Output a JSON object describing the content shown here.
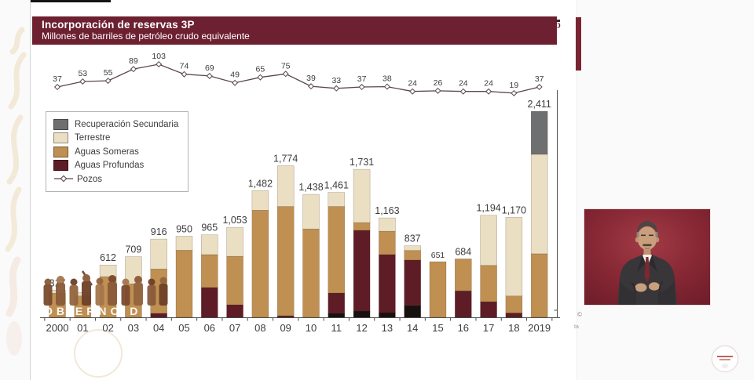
{
  "title": {
    "line1": "Incorporación de reservas 3P",
    "line2": "Millones de barriles de petróleo crudo equivalente"
  },
  "legend": {
    "items": [
      {
        "key": "secundaria",
        "label": "Recuperación Secundaria",
        "type": "swatch"
      },
      {
        "key": "terrestre",
        "label": "Terrestre",
        "type": "swatch"
      },
      {
        "key": "someras",
        "label": "Aguas Someras",
        "type": "swatch"
      },
      {
        "key": "profundas",
        "label": "Aguas Profundas",
        "type": "swatch"
      },
      {
        "key": "line",
        "label": "Pozos",
        "type": "line-marker"
      }
    ]
  },
  "colors": {
    "title_bg": "#6c2030",
    "accent_bar": "#7a2433",
    "secundaria": "#6e6f71",
    "terrestre": "#ebdfc3",
    "someras": "#bf9052",
    "profundas": "#5e1c27",
    "negro": "#171110",
    "line": "#5a4747",
    "text": "#3c3c3c",
    "interpreter_bg": "#7c2230"
  },
  "watermark": {
    "overlay_text_fragment": "OBIERNO D"
  },
  "fragments": {
    "title_edge": "O",
    "copyright": "©",
    "small_text": "ta"
  },
  "chart_data": {
    "type": "bar",
    "subtype": "stacked-bar-with-line-overlay",
    "title": "Incorporación de reservas 3P",
    "unit": "Millones de barriles de petróleo crudo equivalente",
    "grid": false,
    "legend_position": "upper-left",
    "categories": [
      "2000",
      "01",
      "02",
      "03",
      "04",
      "05",
      "06",
      "07",
      "08",
      "09",
      "10",
      "11",
      "12",
      "13",
      "14",
      "15",
      "16",
      "17",
      "18",
      "2019"
    ],
    "series_labels": {
      "secundaria": "Recuperación Secundaria",
      "terrestre": "Terrestre",
      "someras": "Aguas Someras",
      "profundas": "Aguas Profundas",
      "negro": "(segmento oscuro sin etiqueta)"
    },
    "bars": [
      {
        "category": "2000",
        "total": 317,
        "label": "317",
        "segments": [
          [
            "someras",
            280
          ],
          [
            "terrestre",
            37
          ]
        ]
      },
      {
        "category": "01",
        "total": null,
        "label": "",
        "segments": [
          [
            "someras",
            250
          ],
          [
            "terrestre",
            40
          ]
        ]
      },
      {
        "category": "02",
        "total": 612,
        "label": "612",
        "segments": [
          [
            "someras",
            475
          ],
          [
            "terrestre",
            137
          ]
        ]
      },
      {
        "category": "03",
        "total": 709,
        "label": "709",
        "segments": [
          [
            "someras",
            390
          ],
          [
            "terrestre",
            319
          ]
        ]
      },
      {
        "category": "04",
        "total": 916,
        "label": "916",
        "segments": [
          [
            "profundas",
            46
          ],
          [
            "someras",
            520
          ],
          [
            "terrestre",
            350
          ]
        ]
      },
      {
        "category": "05",
        "total": 950,
        "label": "950",
        "segments": [
          [
            "someras",
            785
          ],
          [
            "terrestre",
            165
          ]
        ]
      },
      {
        "category": "06",
        "total": 965,
        "label": "965",
        "segments": [
          [
            "profundas",
            348
          ],
          [
            "someras",
            385
          ],
          [
            "terrestre",
            232
          ]
        ]
      },
      {
        "category": "07",
        "total": 1053,
        "label": "1,053",
        "segments": [
          [
            "profundas",
            147
          ],
          [
            "someras",
            567
          ],
          [
            "terrestre",
            339
          ]
        ]
      },
      {
        "category": "08",
        "total": 1482,
        "label": "1,482",
        "segments": [
          [
            "someras",
            1253
          ],
          [
            "terrestre",
            229
          ]
        ]
      },
      {
        "category": "09",
        "total": 1774,
        "label": "1,774",
        "segments": [
          [
            "profundas",
            18
          ],
          [
            "someras",
            1278
          ],
          [
            "terrestre",
            478
          ]
        ]
      },
      {
        "category": "10",
        "total": 1438,
        "label": "1,438",
        "segments": [
          [
            "someras",
            1034
          ],
          [
            "terrestre",
            404
          ]
        ]
      },
      {
        "category": "11",
        "total": 1461,
        "label": "1,461",
        "segments": [
          [
            "negro",
            46
          ],
          [
            "profundas",
            238
          ],
          [
            "someras",
            1012
          ],
          [
            "terrestre",
            165
          ]
        ]
      },
      {
        "category": "12",
        "total": 1731,
        "label": "1,731",
        "segments": [
          [
            "negro",
            73
          ],
          [
            "profundas",
            944
          ],
          [
            "someras",
            91
          ],
          [
            "terrestre",
            623
          ]
        ]
      },
      {
        "category": "13",
        "total": 1163,
        "label": "1,163",
        "segments": [
          [
            "negro",
            55
          ],
          [
            "profundas",
            679
          ],
          [
            "someras",
            273
          ],
          [
            "terrestre",
            156
          ]
        ]
      },
      {
        "category": "14",
        "total": 837,
        "label": "837",
        "segments": [
          [
            "negro",
            138
          ],
          [
            "profundas",
            532
          ],
          [
            "someras",
            112
          ],
          [
            "terrestre",
            55
          ]
        ]
      },
      {
        "category": "15",
        "total": 651,
        "label": "651",
        "label_small": true,
        "segments": [
          [
            "someras",
            651
          ]
        ]
      },
      {
        "category": "16",
        "total": 684,
        "label": "684",
        "segments": [
          [
            "profundas",
            310
          ],
          [
            "someras",
            374
          ]
        ]
      },
      {
        "category": "17",
        "total": 1194,
        "label": "1,194",
        "segments": [
          [
            "profundas",
            183
          ],
          [
            "someras",
            424
          ],
          [
            "terrestre",
            587
          ]
        ]
      },
      {
        "category": "18",
        "total": 1170,
        "label": "1,170",
        "segments": [
          [
            "profundas",
            50
          ],
          [
            "someras",
            200
          ],
          [
            "terrestre",
            920
          ]
        ]
      },
      {
        "category": "2019",
        "total": 2411,
        "label": "2,411",
        "segments": [
          [
            "someras",
            743
          ],
          [
            "terrestre",
            1164
          ],
          [
            "secundaria",
            504
          ]
        ]
      }
    ],
    "line_series": {
      "name": "Pozos",
      "values": [
        37,
        53,
        55,
        89,
        103,
        74,
        69,
        49,
        65,
        75,
        39,
        33,
        37,
        38,
        24,
        26,
        24,
        24,
        19,
        37
      ]
    }
  }
}
